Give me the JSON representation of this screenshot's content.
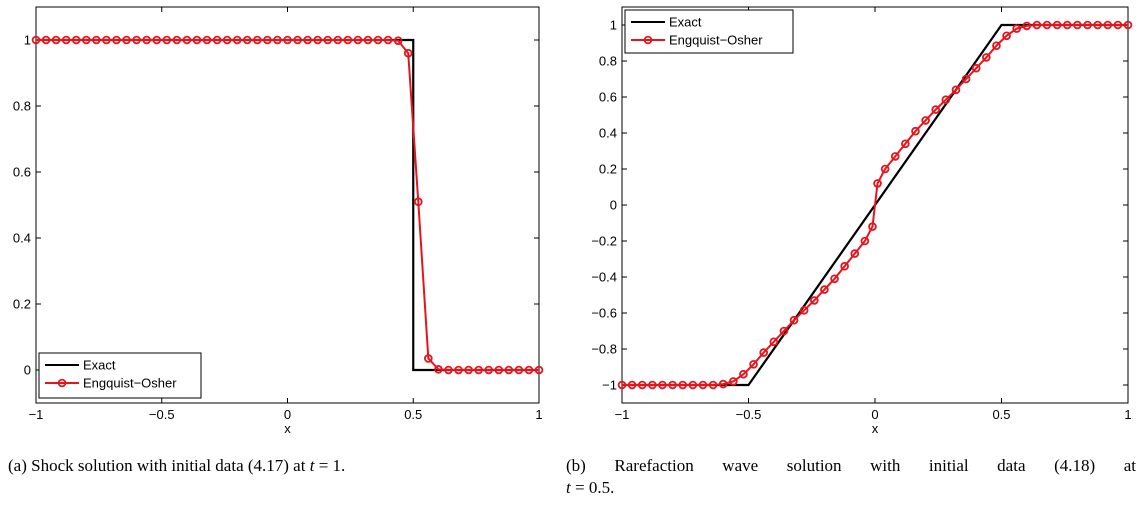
{
  "chart_data": [
    {
      "type": "line",
      "xlabel": "x",
      "ylabel": "",
      "xlim": [
        -1,
        1
      ],
      "ylim": [
        -0.1,
        1.1
      ],
      "xticks": [
        "−1",
        "−0.5",
        "0",
        "0.5",
        "1"
      ],
      "yticks": [
        "0",
        "0.2",
        "0.4",
        "0.6",
        "0.8",
        "1"
      ],
      "legend_position": "bottom-left",
      "series": [
        {
          "name": "Exact",
          "color": "#000000",
          "marker": "none",
          "x": [
            -1,
            0.5,
            0.5,
            1
          ],
          "y": [
            1,
            1,
            0,
            0
          ]
        },
        {
          "name": "Engquist−Osher",
          "color": "#e8141c",
          "marker": "circle",
          "x": [
            -1,
            -0.96,
            -0.92,
            -0.88,
            -0.84,
            -0.8,
            -0.76,
            -0.72,
            -0.68,
            -0.64,
            -0.6,
            -0.56,
            -0.52,
            -0.48,
            -0.44,
            -0.4,
            -0.36,
            -0.32,
            -0.28,
            -0.24,
            -0.2,
            -0.16,
            -0.12,
            -0.08,
            -0.04,
            0,
            0.04,
            0.08,
            0.12,
            0.16,
            0.2,
            0.24,
            0.28,
            0.32,
            0.36,
            0.4,
            0.44,
            0.48,
            0.52,
            0.56,
            0.6,
            0.64,
            0.68,
            0.72,
            0.76,
            0.8,
            0.84,
            0.88,
            0.92,
            0.96,
            1
          ],
          "y": [
            1,
            1,
            1,
            1,
            1,
            1,
            1,
            1,
            1,
            1,
            1,
            1,
            1,
            1,
            1,
            1,
            1,
            1,
            1,
            1,
            1,
            1,
            1,
            1,
            1,
            1,
            1,
            1,
            1,
            1,
            1,
            1,
            1,
            1,
            1,
            1,
            0.998,
            0.96,
            0.51,
            0.035,
            0.002,
            0,
            0,
            0,
            0,
            0,
            0,
            0,
            0,
            0,
            0
          ]
        }
      ]
    },
    {
      "type": "line",
      "xlabel": "x",
      "ylabel": "",
      "xlim": [
        -1,
        1
      ],
      "ylim": [
        -1.1,
        1.1
      ],
      "xticks": [
        "−1",
        "−0.5",
        "0",
        "0.5",
        "1"
      ],
      "yticks": [
        "−1",
        "−0.8",
        "−0.6",
        "−0.4",
        "−0.2",
        "0",
        "0.2",
        "0.4",
        "0.6",
        "0.8",
        "1"
      ],
      "legend_position": "top-left",
      "series": [
        {
          "name": "Exact",
          "color": "#000000",
          "marker": "none",
          "x": [
            -1,
            -0.5,
            0.5,
            1
          ],
          "y": [
            -1,
            -1,
            1,
            1
          ]
        },
        {
          "name": "Engquist−Osher",
          "color": "#e8141c",
          "marker": "circle",
          "x": [
            -1,
            -0.96,
            -0.92,
            -0.88,
            -0.84,
            -0.8,
            -0.76,
            -0.72,
            -0.68,
            -0.64,
            -0.6,
            -0.56,
            -0.52,
            -0.48,
            -0.44,
            -0.4,
            -0.36,
            -0.32,
            -0.28,
            -0.24,
            -0.2,
            -0.16,
            -0.12,
            -0.08,
            -0.04,
            -0.01,
            0.01,
            0.04,
            0.08,
            0.12,
            0.16,
            0.2,
            0.24,
            0.28,
            0.32,
            0.36,
            0.4,
            0.44,
            0.48,
            0.52,
            0.56,
            0.6,
            0.64,
            0.68,
            0.72,
            0.76,
            0.8,
            0.84,
            0.88,
            0.92,
            0.96,
            1
          ],
          "y": [
            -1,
            -1,
            -1,
            -1,
            -1,
            -1,
            -1,
            -1,
            -1,
            -1,
            -0.995,
            -0.98,
            -0.94,
            -0.885,
            -0.82,
            -0.76,
            -0.7,
            -0.64,
            -0.585,
            -0.53,
            -0.47,
            -0.41,
            -0.34,
            -0.27,
            -0.2,
            -0.12,
            0.12,
            0.2,
            0.27,
            0.34,
            0.41,
            0.47,
            0.53,
            0.585,
            0.64,
            0.7,
            0.76,
            0.82,
            0.885,
            0.94,
            0.98,
            0.995,
            1,
            1,
            1,
            1,
            1,
            1,
            1,
            1,
            1,
            1
          ]
        }
      ]
    }
  ],
  "captions": [
    {
      "label": "(a)",
      "line1_pre": "Shock solution with initial data (4.17) at ",
      "line1_var": "t",
      "line1_post": " = 1.",
      "line2_var": "",
      "line2_post": ""
    },
    {
      "label": "(b)",
      "line1_pre": "Rarefaction wave solution with initial data (4.18) at",
      "line1_var": "",
      "line1_post": "",
      "line2_var": "t",
      "line2_post": " = 0.5."
    }
  ]
}
